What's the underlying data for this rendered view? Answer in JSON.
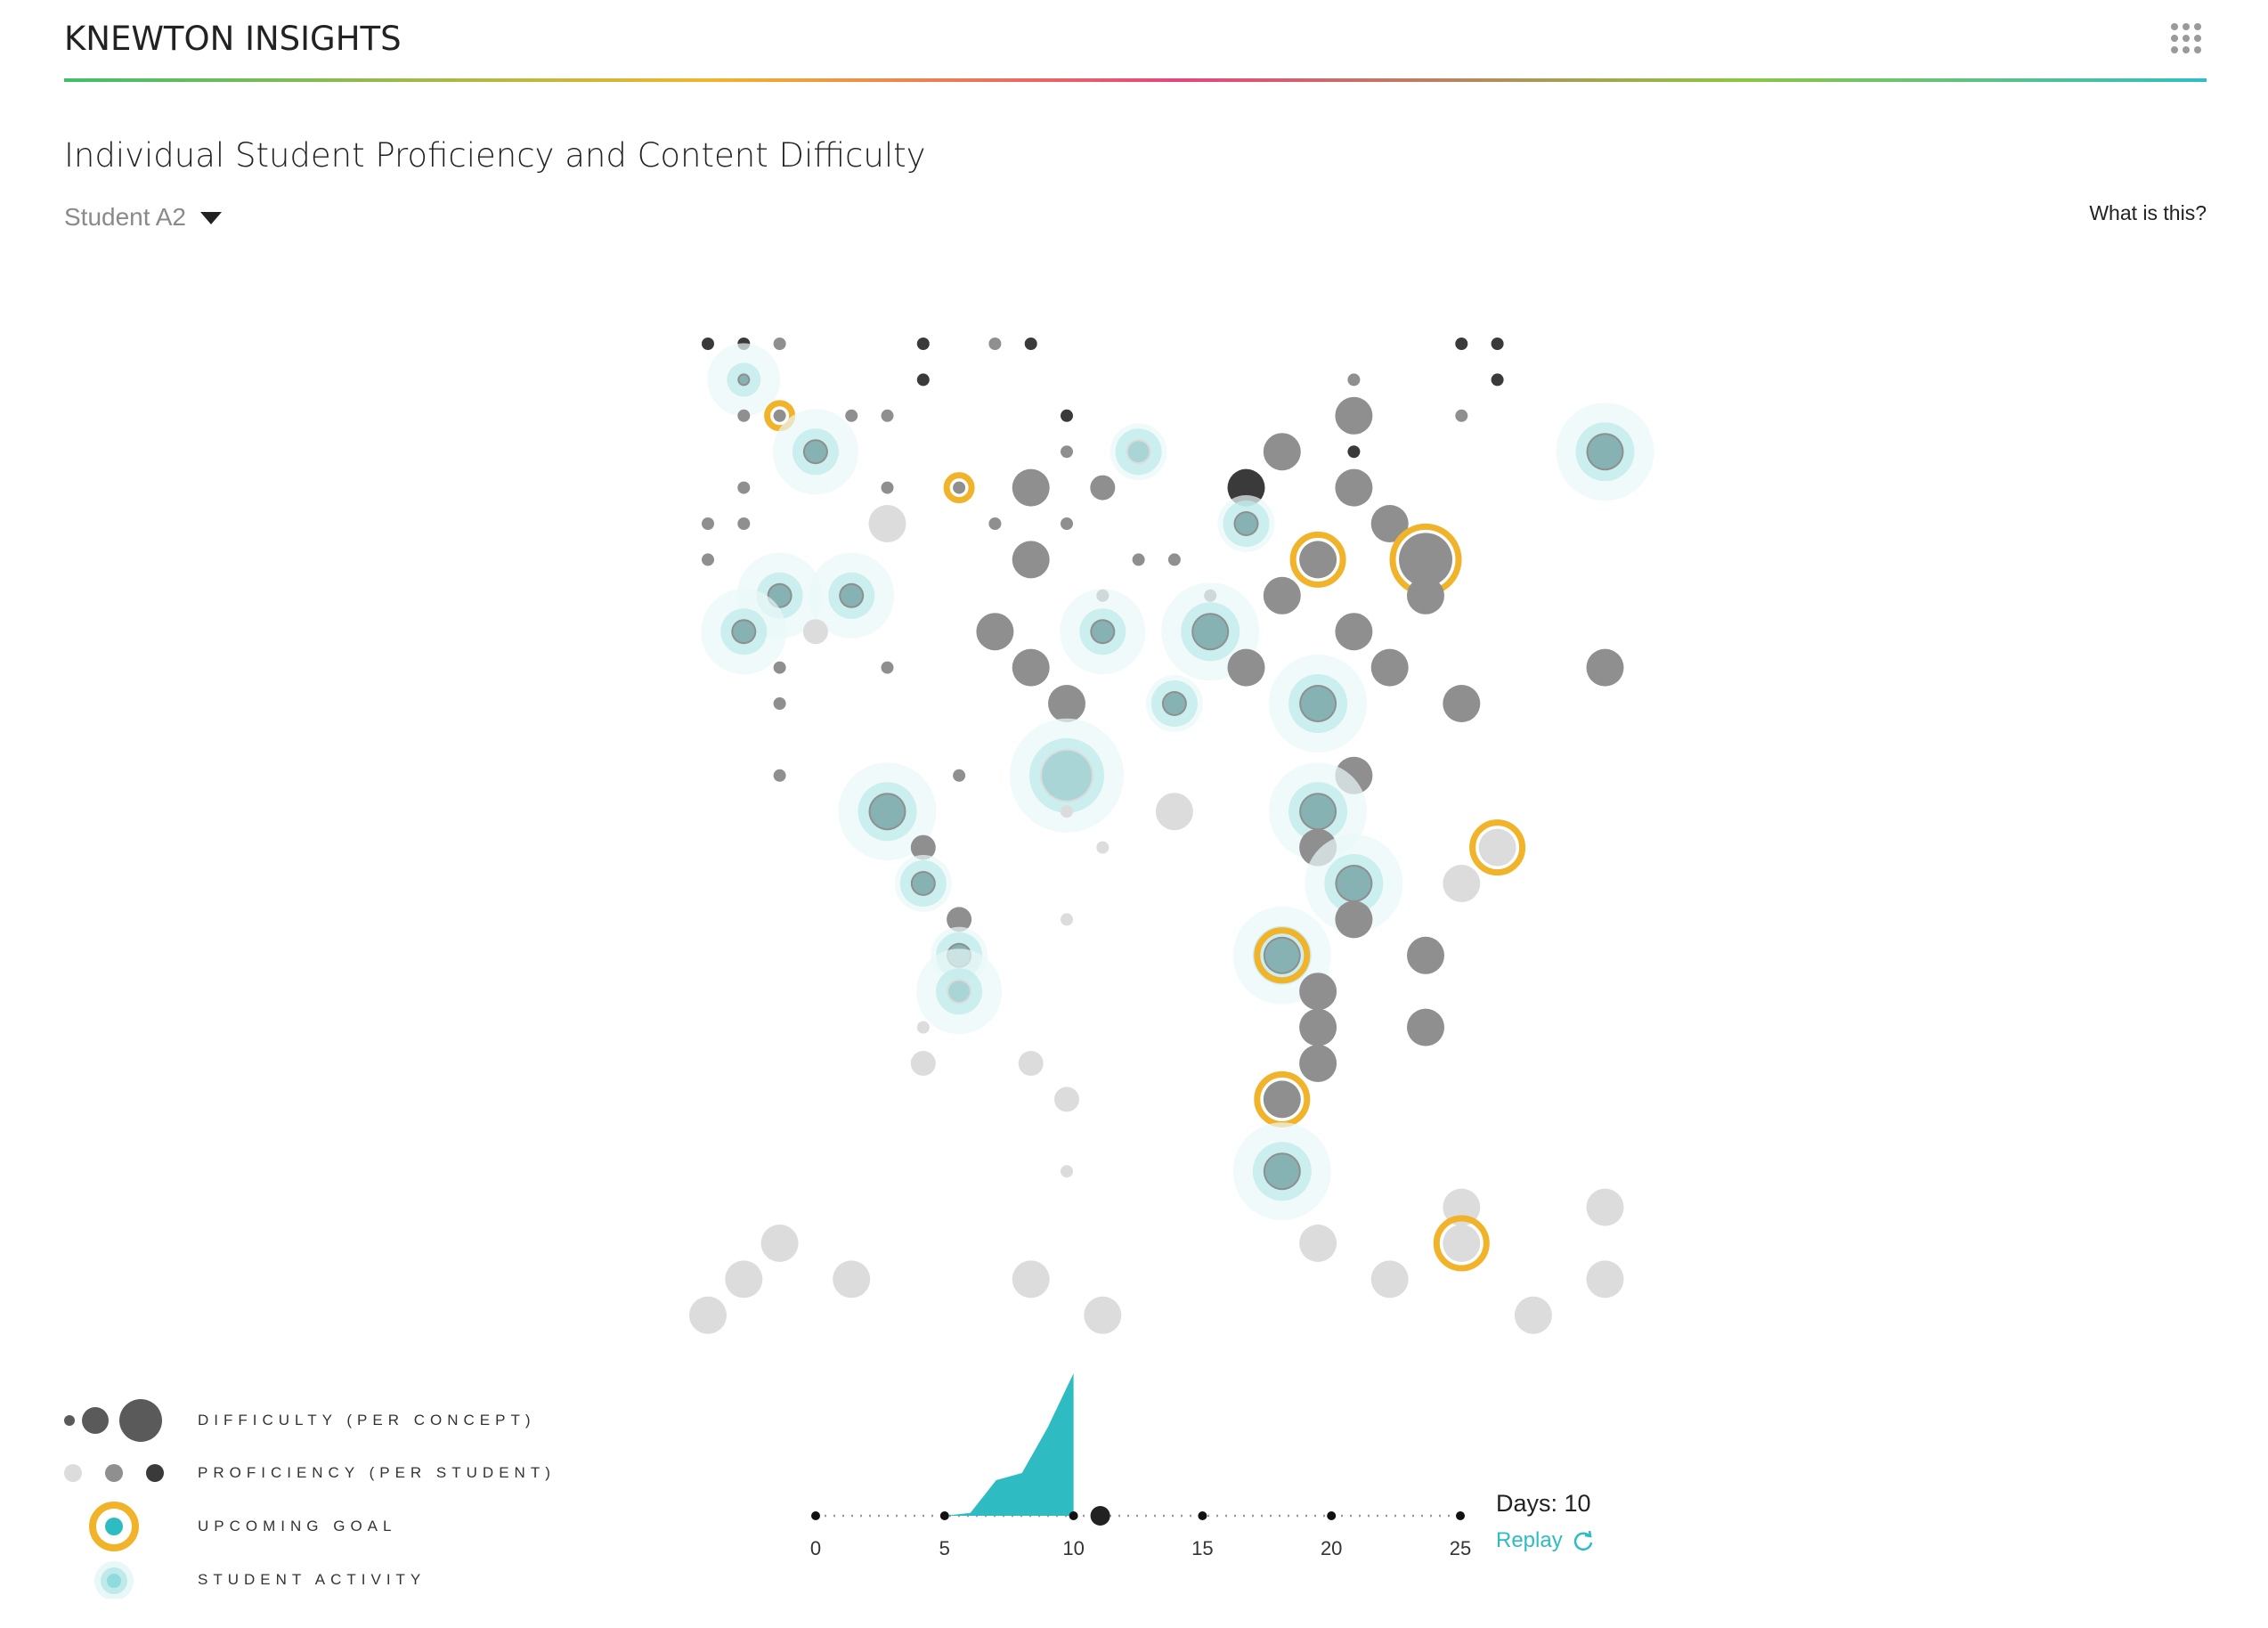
{
  "header": {
    "brand": "KNEWTON INSIGHTS",
    "apps_icon": "grid-icon"
  },
  "page": {
    "title": "Individual Student Proficiency and Content Difficulty",
    "student_select": "Student A2",
    "what_is_this": "What is this?"
  },
  "legend": {
    "difficulty": "DIFFICULTY (PER CONCEPT)",
    "proficiency": "PROFICIENCY (PER STUDENT)",
    "goal": "UPCOMING GOAL",
    "activity": "STUDENT ACTIVITY"
  },
  "colors": {
    "accent": "#2ebcc2",
    "goal": "#f0b32a",
    "prof_low": "#dcdcdc",
    "prof_mid": "#8f8f8f",
    "prof_high": "#3a3a3a",
    "halo": "#bfe9ea"
  },
  "timeline": {
    "ticks": [
      "0",
      "5",
      "10",
      "15",
      "20",
      "25"
    ],
    "current_day": 10,
    "days_label": "Days: 10",
    "replay_label": "Replay",
    "activity_curve": [
      [
        5,
        0
      ],
      [
        6,
        0.02
      ],
      [
        7,
        0.25
      ],
      [
        8,
        0.3
      ],
      [
        9,
        0.62
      ],
      [
        10,
        1.0
      ]
    ]
  }
}
